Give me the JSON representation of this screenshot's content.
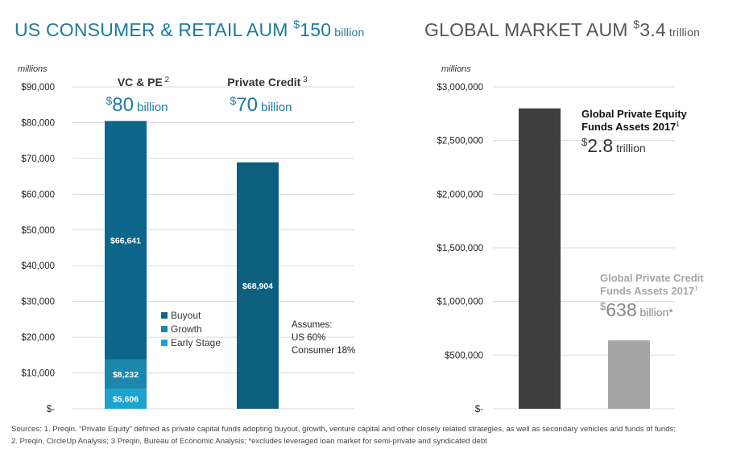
{
  "titles": {
    "left": {
      "text": "US CONSUMER & RETAIL AUM ",
      "sup": "$",
      "value": "150",
      "unit": " billion"
    },
    "right": {
      "text": "GLOBAL MARKET AUM ",
      "sup": "$",
      "value": "3.4",
      "unit": " trillion"
    }
  },
  "units_label": "millions",
  "colors": {
    "buyout": "#0c6689",
    "growth": "#1b87aa",
    "early": "#1aa3cf",
    "credit": "#0c5f7e",
    "pe_global": "#3f3f3f",
    "credit_global": "#a6a6a6",
    "title_left": "#1a7a9c",
    "value_accent": "#1a7a9c",
    "grid": "#d9d9d9"
  },
  "chart_data": [
    {
      "type": "bar",
      "stacked": true,
      "ylim": [
        0,
        90000
      ],
      "yticks": [
        0,
        10000,
        20000,
        30000,
        40000,
        50000,
        60000,
        70000,
        80000,
        90000
      ],
      "ytick_labels": [
        "$-",
        "$10,000",
        "$20,000",
        "$30,000",
        "$40,000",
        "$50,000",
        "$60,000",
        "$70,000",
        "$80,000",
        "$90,000"
      ],
      "grid": true,
      "categories": [
        "VC & PE",
        "Private Credit"
      ],
      "category_headers": [
        {
          "name": "VC & PE",
          "note": "2",
          "total_prefix": "$",
          "total_value": "80",
          "total_unit": "billion"
        },
        {
          "name": "Private Credit",
          "note": "3",
          "total_prefix": "$",
          "total_value": "70",
          "total_unit": "billion"
        }
      ],
      "series": [
        {
          "name": "Early Stage",
          "color_key": "early",
          "values": [
            5606,
            0
          ],
          "labels": [
            "$5,606",
            ""
          ]
        },
        {
          "name": "Growth",
          "color_key": "growth",
          "values": [
            8232,
            0
          ],
          "labels": [
            "$8,232",
            ""
          ]
        },
        {
          "name": "Buyout",
          "color_key": "buyout",
          "values": [
            66641,
            0
          ],
          "labels": [
            "$66,641",
            ""
          ]
        },
        {
          "name": "Private Credit",
          "color_key": "credit",
          "values": [
            0,
            68904
          ],
          "labels": [
            "",
            "$68,904"
          ]
        }
      ],
      "legend": {
        "placement": "center",
        "items": [
          {
            "label": "Buyout",
            "color_key": "buyout"
          },
          {
            "label": "Growth",
            "color_key": "growth"
          },
          {
            "label": "Early Stage",
            "color_key": "early"
          }
        ]
      },
      "annotation": [
        "Assumes:",
        "US 60%",
        "Consumer 18%"
      ]
    },
    {
      "type": "bar",
      "ylim": [
        0,
        3000000
      ],
      "yticks": [
        0,
        500000,
        1000000,
        1500000,
        2000000,
        2500000,
        3000000
      ],
      "ytick_labels": [
        "$-",
        "$500,000",
        "$1,000,000",
        "$1,500,000",
        "$2,000,000",
        "$2,500,000",
        "$3,000,000"
      ],
      "grid": true,
      "categories": [
        "Global Private Equity Funds Assets 2017",
        "Global Private Credit Funds Assets 2017"
      ],
      "values": [
        2800000,
        638000
      ],
      "color_keys": [
        "pe_global",
        "credit_global"
      ],
      "annotations": [
        {
          "line1": "Global Private Equity",
          "line2": "Funds Assets 2017",
          "sup": "1",
          "prefix": "$",
          "value": "2.8",
          "unit": "trillion"
        },
        {
          "line1": "Global Private Credit",
          "line2": "Funds Assets 2017",
          "sup": "1",
          "prefix": "$",
          "value": "638",
          "unit": "billion*"
        }
      ]
    }
  ],
  "footer": {
    "line1": "Sources: 1. Preqin. “Private Equity” defined as private capital funds adopting buyout, growth, venture capital and other closely related strategies, as well as secondary vehicles and funds of funds;",
    "line2": "2. Preqin, CircleUp Analysis; 3 Preqin, Bureau of Economic Analysis; *excludes leveraged loan market for semi-private and syndicated debt"
  }
}
